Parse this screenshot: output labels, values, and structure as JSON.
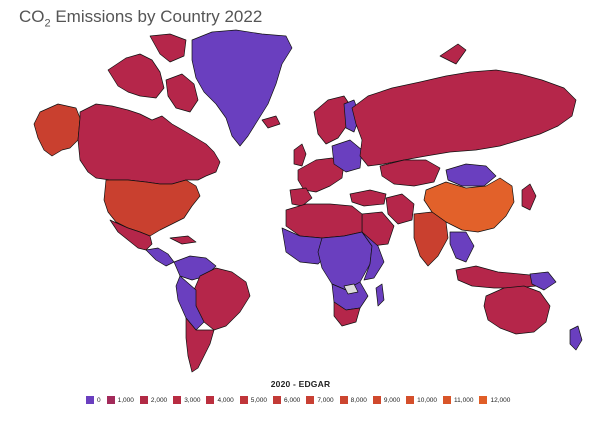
{
  "title_main": "CO",
  "title_sub": "2",
  "title_rest": " Emissions by Country 2022",
  "legend": {
    "title": "2020 - EDGAR",
    "items": [
      {
        "label": "0",
        "color": "#6a3fbf"
      },
      {
        "label": "1,000",
        "color": "#a32a5a"
      },
      {
        "label": "2,000",
        "color": "#b22a45"
      },
      {
        "label": "3,000",
        "color": "#b82c42"
      },
      {
        "label": "4,000",
        "color": "#bb2f3e"
      },
      {
        "label": "5,000",
        "color": "#c0353a"
      },
      {
        "label": "6,000",
        "color": "#c33a36"
      },
      {
        "label": "7,000",
        "color": "#c84033"
      },
      {
        "label": "8,000",
        "color": "#cc4530"
      },
      {
        "label": "9,000",
        "color": "#d0492d"
      },
      {
        "label": "10,000",
        "color": "#d44f2b"
      },
      {
        "label": "11,000",
        "color": "#d95529"
      },
      {
        "label": "12,000",
        "color": "#e05e27"
      }
    ]
  },
  "palette": {
    "low": "#6a3fbf",
    "mid": "#b5264a",
    "high": "#c9402f",
    "max": "#e2612a",
    "nodata": "#dcdcdc",
    "border": "#111111"
  }
}
